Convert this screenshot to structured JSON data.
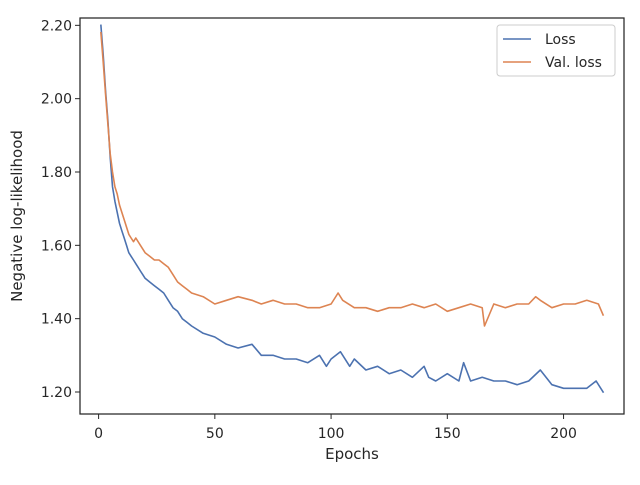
{
  "chart_data": {
    "type": "line",
    "xlabel": "Epochs",
    "ylabel": "Negative log-likelihood",
    "xlim": [
      -8,
      226
    ],
    "ylim": [
      1.14,
      2.22
    ],
    "xticks": [
      0,
      50,
      100,
      150,
      200
    ],
    "xtick_labels": [
      "0",
      "50",
      "100",
      "150",
      "200"
    ],
    "yticks": [
      1.2,
      1.4,
      1.6,
      1.8,
      2.0,
      2.2
    ],
    "ytick_labels": [
      "1.20",
      "1.40",
      "1.60",
      "1.80",
      "2.00",
      "2.20"
    ],
    "grid": false,
    "legend": {
      "position": "top-right",
      "entries": [
        "Loss",
        "Val. loss"
      ]
    },
    "series": [
      {
        "name": "Loss",
        "color": "#4c72b0",
        "x": [
          1,
          2,
          3,
          4,
          5,
          6,
          7,
          8,
          9,
          10,
          11,
          12,
          13,
          14,
          15,
          16,
          17,
          18,
          19,
          20,
          22,
          24,
          26,
          28,
          30,
          32,
          34,
          36,
          38,
          40,
          45,
          50,
          55,
          60,
          66,
          70,
          75,
          80,
          85,
          90,
          95,
          98,
          100,
          104,
          108,
          110,
          115,
          120,
          125,
          130,
          135,
          140,
          142,
          145,
          150,
          155,
          157,
          160,
          165,
          170,
          175,
          180,
          185,
          190,
          195,
          200,
          205,
          210,
          214,
          217
        ],
        "y": [
          2.2,
          2.12,
          2.02,
          1.94,
          1.84,
          1.76,
          1.72,
          1.69,
          1.66,
          1.64,
          1.62,
          1.6,
          1.58,
          1.57,
          1.56,
          1.55,
          1.54,
          1.53,
          1.52,
          1.51,
          1.5,
          1.49,
          1.48,
          1.47,
          1.45,
          1.43,
          1.42,
          1.4,
          1.39,
          1.38,
          1.36,
          1.35,
          1.33,
          1.32,
          1.33,
          1.3,
          1.3,
          1.29,
          1.29,
          1.28,
          1.3,
          1.27,
          1.29,
          1.31,
          1.27,
          1.29,
          1.26,
          1.27,
          1.25,
          1.26,
          1.24,
          1.27,
          1.24,
          1.23,
          1.25,
          1.23,
          1.28,
          1.23,
          1.24,
          1.23,
          1.23,
          1.22,
          1.23,
          1.26,
          1.22,
          1.21,
          1.21,
          1.21,
          1.23,
          1.2
        ]
      },
      {
        "name": "Val. loss",
        "color": "#dd8452",
        "x": [
          1,
          2,
          3,
          4,
          5,
          6,
          7,
          8,
          9,
          10,
          11,
          12,
          13,
          14,
          15,
          16,
          18,
          20,
          22,
          24,
          26,
          28,
          30,
          32,
          34,
          36,
          38,
          40,
          45,
          50,
          55,
          60,
          66,
          70,
          75,
          80,
          85,
          90,
          95,
          100,
          103,
          105,
          110,
          115,
          120,
          125,
          130,
          135,
          140,
          145,
          150,
          155,
          160,
          165,
          166,
          170,
          175,
          180,
          185,
          188,
          190,
          195,
          200,
          205,
          210,
          215,
          217
        ],
        "y": [
          2.18,
          2.1,
          2.01,
          1.93,
          1.85,
          1.8,
          1.76,
          1.74,
          1.71,
          1.69,
          1.67,
          1.65,
          1.63,
          1.62,
          1.61,
          1.62,
          1.6,
          1.58,
          1.57,
          1.56,
          1.56,
          1.55,
          1.54,
          1.52,
          1.5,
          1.49,
          1.48,
          1.47,
          1.46,
          1.44,
          1.45,
          1.46,
          1.45,
          1.44,
          1.45,
          1.44,
          1.44,
          1.43,
          1.43,
          1.44,
          1.47,
          1.45,
          1.43,
          1.43,
          1.42,
          1.43,
          1.43,
          1.44,
          1.43,
          1.44,
          1.42,
          1.43,
          1.44,
          1.43,
          1.38,
          1.44,
          1.43,
          1.44,
          1.44,
          1.46,
          1.45,
          1.43,
          1.44,
          1.44,
          1.45,
          1.44,
          1.41
        ]
      }
    ]
  }
}
